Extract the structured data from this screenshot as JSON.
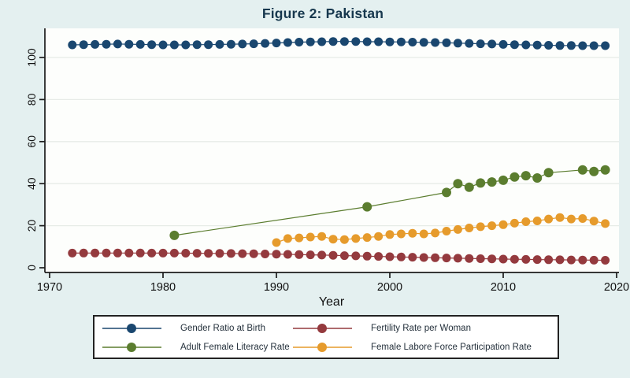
{
  "title": "Figure 2: Pakistan",
  "colors": {
    "background": "#e4f0f0",
    "plot_background": "#fdfefc",
    "title_text": "#17384e",
    "axis": "#1c1c1c",
    "tick_text": "#111111",
    "gridline": "#e7ece7",
    "navy": "#1a476f",
    "maroon": "#943a3e",
    "green": "#5b7d2f",
    "orange": "#e69b2c",
    "legend_border": "#222222",
    "legend_background": "#ffffff",
    "legend_text": "#25313c"
  },
  "chart_data": {
    "type": "line",
    "title": "Figure 2: Pakistan",
    "xlabel": "Year",
    "ylabel": "",
    "xlim": [
      1970,
      2020
    ],
    "ylim": [
      0,
      100
    ],
    "x_ticks": [
      1970,
      1980,
      1990,
      2000,
      2010,
      2020
    ],
    "y_ticks": [
      0,
      20,
      40,
      60,
      80,
      100
    ],
    "grid": true,
    "legend_position": "bottom",
    "series": [
      {
        "name": "Gender Ratio at Birth",
        "color": "navy",
        "x_start": 1972,
        "y": [
          106.0,
          106.1,
          106.2,
          106.3,
          106.4,
          106.3,
          106.2,
          106.1,
          106.0,
          106.0,
          106.0,
          106.1,
          106.1,
          106.2,
          106.3,
          106.4,
          106.5,
          106.7,
          106.9,
          107.1,
          107.3,
          107.4,
          107.5,
          107.6,
          107.6,
          107.6,
          107.5,
          107.5,
          107.4,
          107.4,
          107.3,
          107.2,
          107.1,
          107.0,
          106.8,
          106.7,
          106.5,
          106.4,
          106.2,
          106.1,
          106.0,
          105.9,
          105.8,
          105.7,
          105.7,
          105.6,
          105.6,
          105.6
        ]
      },
      {
        "name": "Fertility Rate per Woman",
        "color": "maroon",
        "x_start": 1972,
        "y": [
          6.98,
          6.99,
          7.0,
          7.0,
          7.0,
          7.0,
          6.99,
          6.98,
          6.97,
          6.95,
          6.93,
          6.9,
          6.87,
          6.83,
          6.78,
          6.72,
          6.65,
          6.57,
          6.48,
          6.38,
          6.27,
          6.15,
          6.03,
          5.91,
          5.78,
          5.65,
          5.52,
          5.39,
          5.26,
          5.13,
          5.0,
          4.88,
          4.76,
          4.64,
          4.53,
          4.42,
          4.32,
          4.22,
          4.13,
          4.05,
          3.97,
          3.9,
          3.83,
          3.77,
          3.71,
          3.66,
          3.61,
          3.56
        ]
      },
      {
        "name": "Adult Female Literacy Rate",
        "color": "green",
        "x": [
          1981,
          1998,
          2005,
          2006,
          2007,
          2008,
          2009,
          2010,
          2011,
          2012,
          2013,
          2014,
          2017,
          2018,
          2019
        ],
        "y": [
          15.4,
          29.0,
          35.8,
          40.0,
          38.3,
          40.3,
          40.8,
          41.6,
          43.2,
          43.8,
          42.7,
          45.2,
          46.5,
          45.8,
          46.5
        ]
      },
      {
        "name": "Female Labore Force Participation Rate",
        "color": "orange",
        "x": [
          1990,
          1991,
          1992,
          1993,
          1994,
          1995,
          1996,
          1997,
          1998,
          1999,
          2000,
          2001,
          2002,
          2003,
          2004,
          2005,
          2006,
          2007,
          2008,
          2009,
          2010,
          2011,
          2012,
          2013,
          2014,
          2015,
          2016,
          2017,
          2018,
          2019
        ],
        "y": [
          12.0,
          13.9,
          14.2,
          14.6,
          14.9,
          13.6,
          13.4,
          13.9,
          14.4,
          14.9,
          15.8,
          16.1,
          16.4,
          16.1,
          16.5,
          17.4,
          18.2,
          18.9,
          19.5,
          20.0,
          20.5,
          21.2,
          21.9,
          22.3,
          23.2,
          23.9,
          23.2,
          23.4,
          22.2,
          21.0
        ]
      }
    ]
  }
}
